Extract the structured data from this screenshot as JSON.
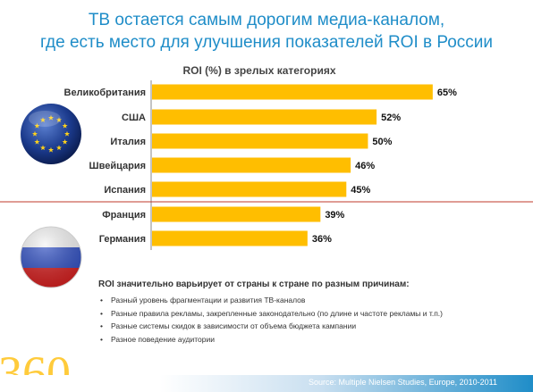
{
  "header": {
    "title_line1": "ТВ остается самым дорогим медиа-каналом,",
    "title_line2": "где есть место для улучшения показателей ROI в России"
  },
  "chart_data": {
    "type": "bar",
    "orientation": "horizontal",
    "title": "ROI (%) в зрелых категориях",
    "categories": [
      "Великобритания",
      "США",
      "Италия",
      "Швейцария",
      "Испания",
      "Франция",
      "Германия"
    ],
    "values": [
      65,
      52,
      50,
      46,
      45,
      39,
      36
    ],
    "value_labels": [
      "65%",
      "52%",
      "50%",
      "46%",
      "45%",
      "39%",
      "36%"
    ],
    "xlim": [
      0,
      70
    ],
    "grid": false,
    "colors": {
      "bar": "#ffbe00",
      "divider": "#c0392b"
    }
  },
  "notes": {
    "heading": "ROI значительно варьирует от страны к стране по разным причинам:",
    "bullet": "•",
    "items": [
      "Разный уровень фрагментации и развития ТВ-каналов",
      "Разные правила рекламы, закрепленные законодательно (по длине и частоте рекламы и т.п.)",
      "Разные системы скидок в зависимости от объема бюджета кампании",
      "Разное поведение аудитории"
    ]
  },
  "footer": {
    "source": "Source: Multiple Nielsen Studies, Europe, 2010-2011",
    "logo_text": "360"
  },
  "icons": {
    "eu_flag": "eu-flag-icon",
    "russia_flag": "russia-flag-icon"
  }
}
